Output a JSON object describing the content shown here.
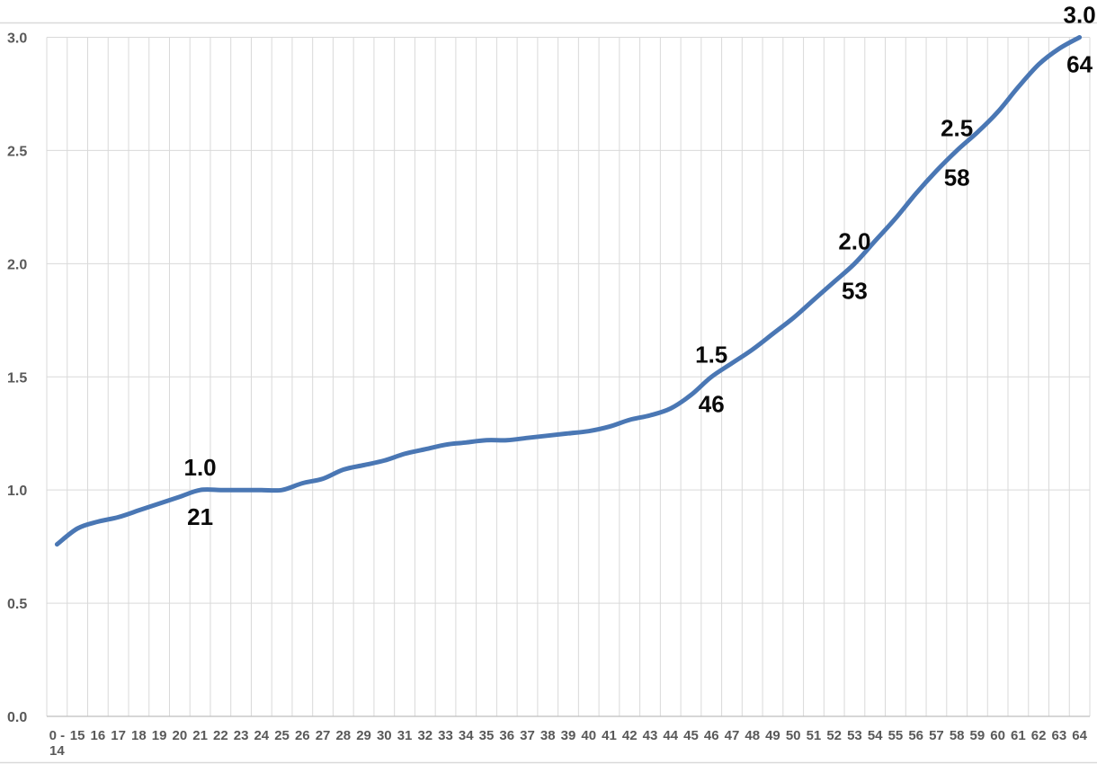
{
  "chart_data": {
    "type": "line",
    "title": "",
    "xlabel": "",
    "ylabel": "",
    "categories": [
      "0 - 14",
      "15",
      "16",
      "17",
      "18",
      "19",
      "20",
      "21",
      "22",
      "23",
      "24",
      "25",
      "26",
      "27",
      "28",
      "29",
      "30",
      "31",
      "32",
      "33",
      "34",
      "35",
      "36",
      "37",
      "38",
      "39",
      "40",
      "41",
      "42",
      "43",
      "44",
      "45",
      "46",
      "47",
      "48",
      "49",
      "50",
      "51",
      "52",
      "53",
      "54",
      "55",
      "56",
      "57",
      "58",
      "59",
      "60",
      "61",
      "62",
      "63",
      "64"
    ],
    "values": [
      0.76,
      0.83,
      0.86,
      0.88,
      0.91,
      0.94,
      0.97,
      1.0,
      1.0,
      1.0,
      1.0,
      1.0,
      1.03,
      1.05,
      1.09,
      1.11,
      1.13,
      1.16,
      1.18,
      1.2,
      1.21,
      1.22,
      1.22,
      1.23,
      1.24,
      1.25,
      1.26,
      1.28,
      1.31,
      1.33,
      1.36,
      1.42,
      1.5,
      1.56,
      1.62,
      1.69,
      1.76,
      1.84,
      1.92,
      2.0,
      2.1,
      2.2,
      2.31,
      2.41,
      2.5,
      2.58,
      2.67,
      2.78,
      2.88,
      2.95,
      3.0
    ],
    "ylim": [
      0.0,
      3.0
    ],
    "ytick_step": 0.5,
    "ytick_labels": [
      "0.0",
      "0.5",
      "1.0",
      "1.5",
      "2.0",
      "2.5",
      "3.0"
    ],
    "grid": true,
    "legend": "none",
    "smoothed": true,
    "annotations": [
      {
        "category": "21",
        "value_label": "1.0",
        "category_label": "21"
      },
      {
        "category": "46",
        "value_label": "1.5",
        "category_label": "46"
      },
      {
        "category": "53",
        "value_label": "2.0",
        "category_label": "53"
      },
      {
        "category": "58",
        "value_label": "2.5",
        "category_label": "58"
      },
      {
        "category": "64",
        "value_label": "3.0",
        "category_label": "64"
      }
    ]
  },
  "colors": {
    "series_line": "#4a77b4",
    "gridline": "#d9d9d9",
    "axis_line": "#bfbfbf",
    "chart_border": "#d9d9d9",
    "tick_text": "#595959",
    "data_label_text": "#0a0a0a",
    "background": "#ffffff"
  }
}
